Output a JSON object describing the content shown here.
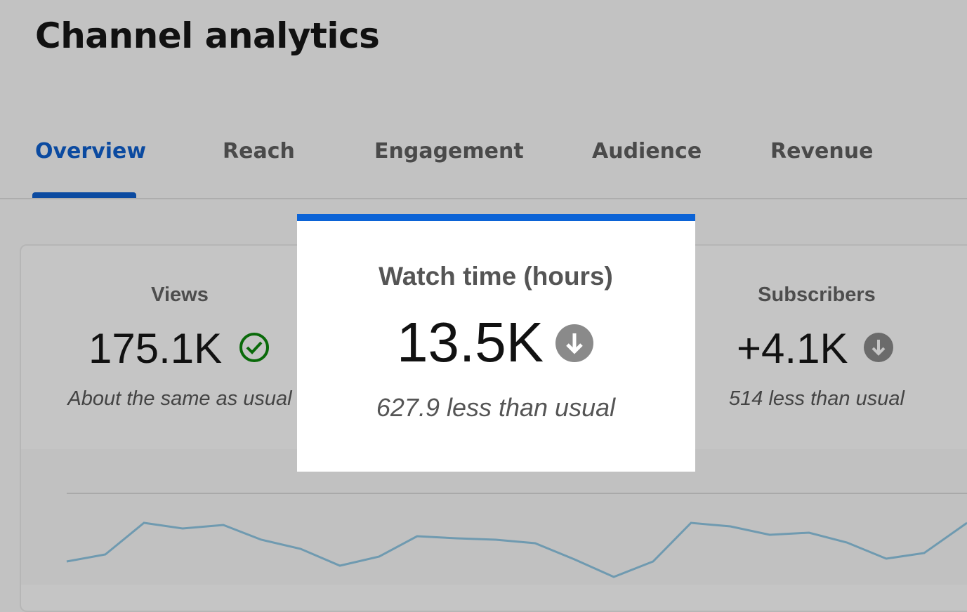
{
  "header": {
    "title": "Channel analytics"
  },
  "tabs": [
    "Overview",
    "Reach",
    "Engagement",
    "Audience",
    "Revenue"
  ],
  "metrics": [
    {
      "label": "Views",
      "value": "175.1K",
      "note": "About the same as usual"
    },
    {
      "label": "Watch time (hours)",
      "value": "13.5K",
      "note": "627.9 less than usual"
    },
    {
      "label": "Subscribers",
      "value": "+4.1K",
      "note": "514 less than usual"
    }
  ]
}
